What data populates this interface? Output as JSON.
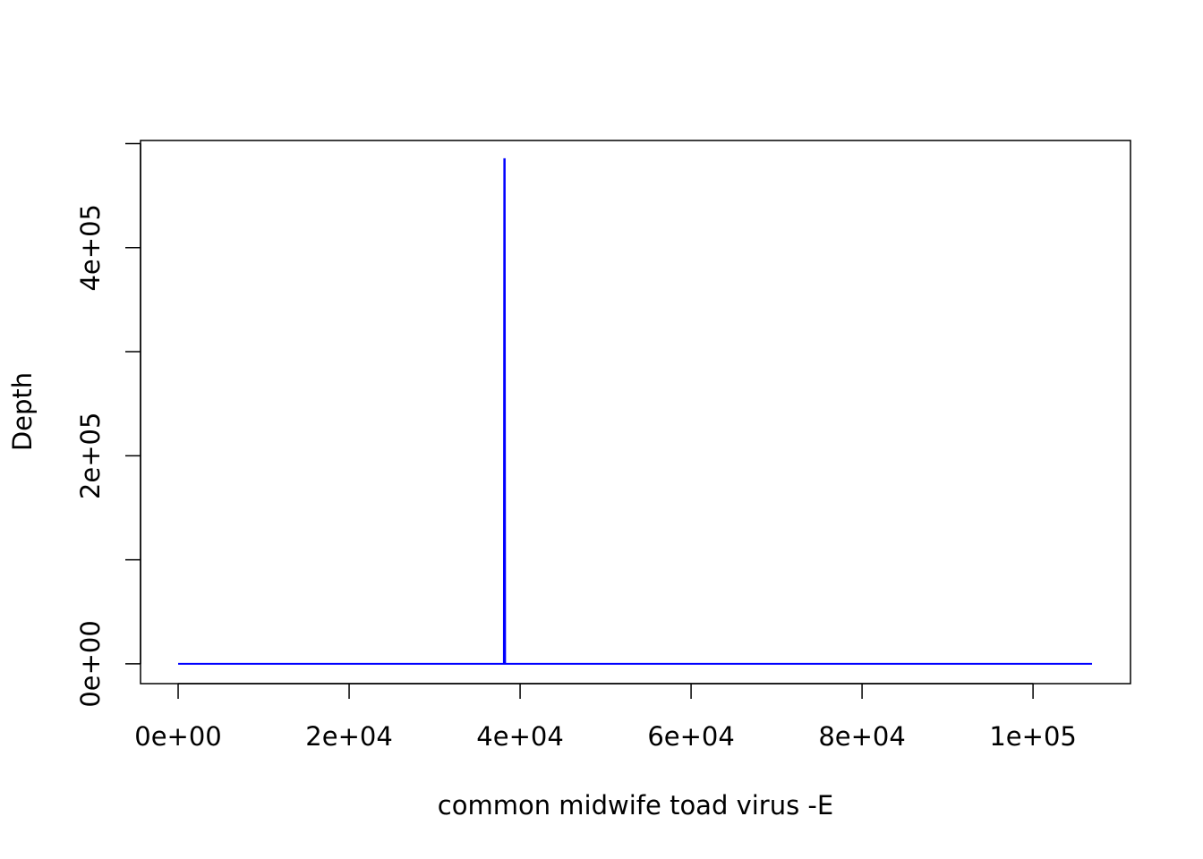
{
  "chart_data": {
    "type": "line",
    "title": "",
    "xlabel": "common midwife toad virus -E",
    "ylabel": "Depth",
    "xlim": [
      -4400,
      111400
    ],
    "ylim": [
      -19000,
      503000
    ],
    "x_ticks": [
      0,
      20000,
      40000,
      60000,
      80000,
      100000
    ],
    "x_tick_labels": [
      "0e+00",
      "2e+04",
      "4e+04",
      "6e+04",
      "8e+04",
      "1e+05"
    ],
    "y_ticks": [
      0,
      100000,
      200000,
      300000,
      400000,
      500000
    ],
    "y_tick_labels": [
      "0e+00",
      "",
      "2e+05",
      "",
      "4e+05",
      ""
    ],
    "grid": false,
    "series": [
      {
        "color": "#0000ff",
        "x": [
          1,
          38100,
          38150,
          38200,
          38250,
          106900
        ],
        "y": [
          0,
          0,
          485000,
          485000,
          0,
          0
        ]
      }
    ]
  }
}
